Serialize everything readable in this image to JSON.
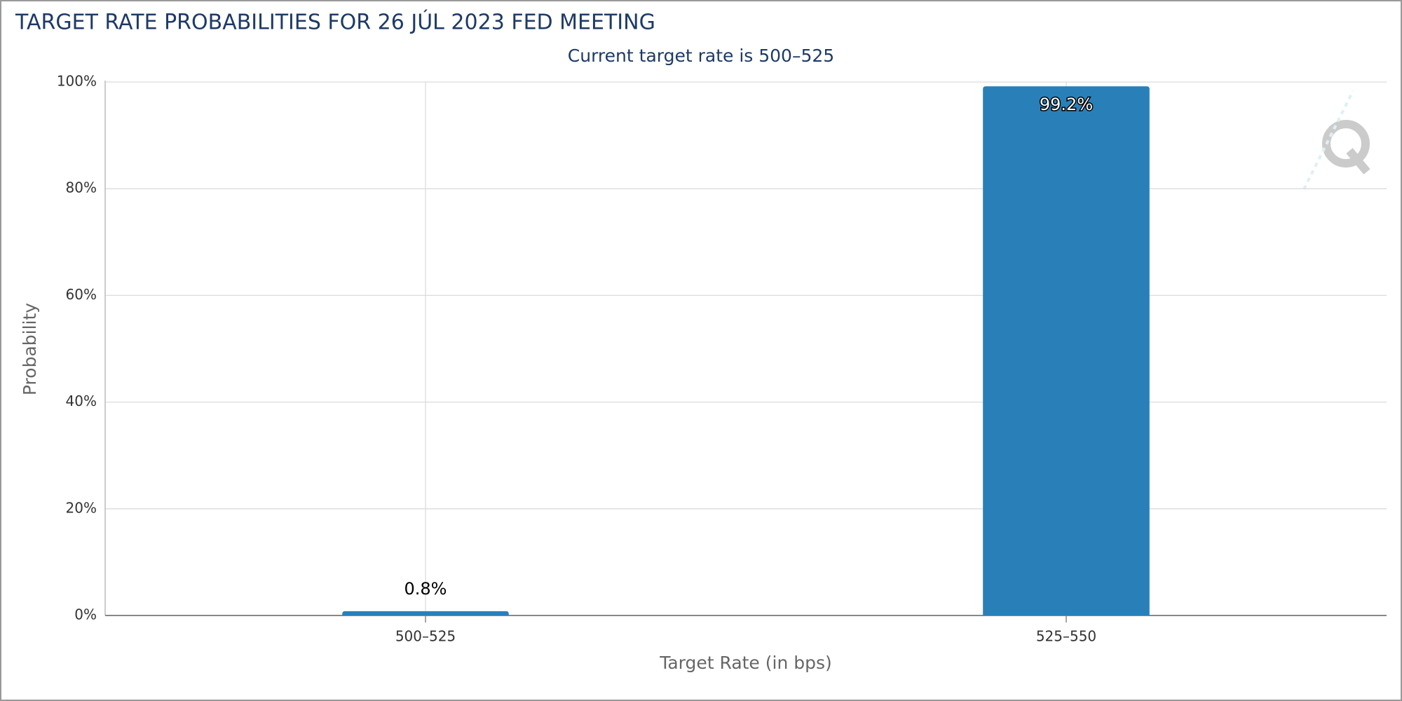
{
  "chart_data": {
    "type": "bar",
    "title": "TARGET RATE PROBABILITIES FOR 26 JÚL 2023 FED MEETING",
    "subtitle": "Current target rate is 500–525",
    "x_label": "Target Rate (in bps)",
    "y_label": "Probability",
    "categories": [
      "500–525",
      "525–550"
    ],
    "values": [
      0.8,
      99.2
    ],
    "value_labels": [
      "0.8%",
      "99.2%"
    ],
    "color": "#2980b9",
    "ylim": [
      0,
      100
    ],
    "yticks": [
      {
        "value": 0,
        "label": "0%"
      },
      {
        "value": 20,
        "label": "20%"
      },
      {
        "value": 40,
        "label": "40%"
      },
      {
        "value": 60,
        "label": "60%"
      },
      {
        "value": 80,
        "label": "80%"
      },
      {
        "value": 100,
        "label": "100%"
      }
    ],
    "grid": true
  }
}
